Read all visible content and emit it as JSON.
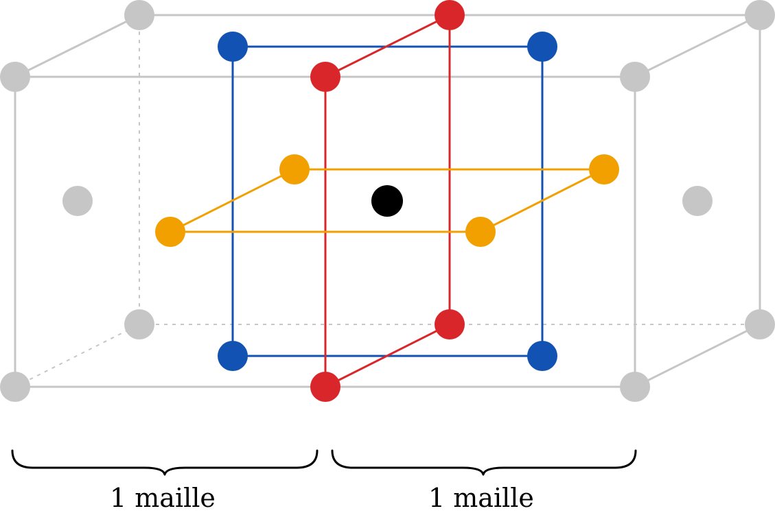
{
  "labels": {
    "left": "1 maille",
    "right": "1 maille"
  },
  "colors": {
    "background": "#ffffff",
    "frame": "#c6c6c6",
    "blue": "#1152b2",
    "red": "#d8262a",
    "orange": "#f2a000",
    "center": "#000000",
    "brace": "#000000"
  }
}
